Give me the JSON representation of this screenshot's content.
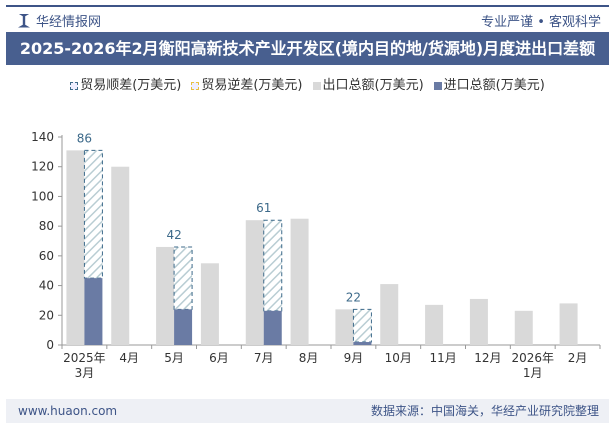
{
  "header": {
    "brand": "华经情报网",
    "slogan": "专业严谨 • 客观科学",
    "title": "2025-2026年2月衡阳高新技术产业开发区(境内目的地/货源地)月度进出口差额"
  },
  "footer": {
    "website": "www.huaon.com",
    "source": "数据来源：中国海关，华经产业研究院整理"
  },
  "chart_data": {
    "type": "bar",
    "categories": [
      "2025年3月",
      "4月",
      "5月",
      "6月",
      "7月",
      "8月",
      "9月",
      "10月",
      "11月",
      "12月",
      "2026年1月",
      "2月"
    ],
    "series": [
      {
        "name": "贸易顺差(万美元)",
        "values": [
          86,
          null,
          42,
          null,
          61,
          null,
          22,
          null,
          null,
          null,
          null,
          null
        ],
        "color": "#3d6a8a"
      },
      {
        "name": "贸易逆差(万美元)",
        "values": [
          null,
          null,
          null,
          null,
          null,
          null,
          null,
          null,
          null,
          null,
          null,
          null
        ],
        "color": "#e8c040"
      },
      {
        "name": "出口总额(万美元)",
        "values": [
          131,
          120,
          66,
          55,
          84,
          85,
          24,
          41,
          27,
          31,
          23,
          28
        ],
        "color": "#d9d9d9"
      },
      {
        "name": "进口总额(万美元)",
        "values": [
          45,
          0,
          24,
          0,
          23,
          0,
          2,
          0,
          0,
          0,
          0,
          0
        ],
        "color": "#6a7ba4"
      }
    ],
    "yticks": [
      0,
      20,
      40,
      60,
      80,
      100,
      120,
      140
    ],
    "ylim": [
      0,
      140
    ],
    "legend": "top",
    "grid": false
  }
}
